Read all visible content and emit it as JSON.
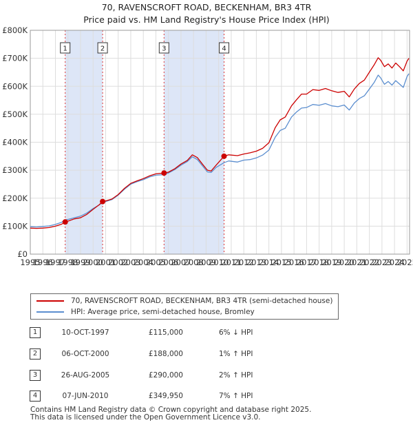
{
  "chart_data": {
    "type": "line",
    "title": "70, RAVENSCROFT ROAD, BECKENHAM, BR3 4TR",
    "subtitle": "Price paid vs. HM Land Registry's House Price Index (HPI)",
    "xlabel": "",
    "ylabel": "",
    "xlim": [
      1995,
      2025.2
    ],
    "ylim": [
      0,
      800000
    ],
    "x_ticks": [
      "1995",
      "1996",
      "1997",
      "1998",
      "1999",
      "2000",
      "2001",
      "2002",
      "2003",
      "2004",
      "2005",
      "2006",
      "2007",
      "2008",
      "2009",
      "2010",
      "2011",
      "2012",
      "2013",
      "2014",
      "2015",
      "2016",
      "2017",
      "2018",
      "2019",
      "2020",
      "2021",
      "2022",
      "2023",
      "2024",
      "2025"
    ],
    "y_ticks": [
      {
        "value": 0,
        "label": "£0"
      },
      {
        "value": 100000,
        "label": "£100K"
      },
      {
        "value": 200000,
        "label": "£200K"
      },
      {
        "value": 300000,
        "label": "£300K"
      },
      {
        "value": 400000,
        "label": "£400K"
      },
      {
        "value": 500000,
        "label": "£500K"
      },
      {
        "value": 600000,
        "label": "£600K"
      },
      {
        "value": 700000,
        "label": "£700K"
      },
      {
        "value": 800000,
        "label": "£800K"
      }
    ],
    "shaded_ranges": [
      [
        1997.78,
        2000.76
      ],
      [
        2005.65,
        2010.43
      ]
    ],
    "series": [
      {
        "name": "70, RAVENSCROFT ROAD, BECKENHAM, BR3 4TR (semi-detached house)",
        "color": "#cc0000",
        "points": [
          [
            1995.0,
            93000
          ],
          [
            1995.5,
            92000
          ],
          [
            1996.0,
            93000
          ],
          [
            1996.5,
            95000
          ],
          [
            1997.0,
            100000
          ],
          [
            1997.5,
            107000
          ],
          [
            1997.78,
            115000
          ],
          [
            1998.0,
            118000
          ],
          [
            1998.5,
            126000
          ],
          [
            1999.0,
            130000
          ],
          [
            1999.5,
            142000
          ],
          [
            2000.0,
            160000
          ],
          [
            2000.5,
            177000
          ],
          [
            2000.76,
            188000
          ],
          [
            2001.0,
            190000
          ],
          [
            2001.5,
            197000
          ],
          [
            2002.0,
            213000
          ],
          [
            2002.5,
            235000
          ],
          [
            2003.0,
            253000
          ],
          [
            2003.5,
            262000
          ],
          [
            2004.0,
            270000
          ],
          [
            2004.5,
            280000
          ],
          [
            2005.0,
            287000
          ],
          [
            2005.65,
            290000
          ],
          [
            2006.0,
            293000
          ],
          [
            2006.5,
            305000
          ],
          [
            2007.0,
            322000
          ],
          [
            2007.5,
            335000
          ],
          [
            2007.9,
            355000
          ],
          [
            2008.3,
            345000
          ],
          [
            2008.7,
            322000
          ],
          [
            2009.1,
            300000
          ],
          [
            2009.4,
            297000
          ],
          [
            2009.8,
            318000
          ],
          [
            2010.43,
            349950
          ],
          [
            2010.8,
            355000
          ],
          [
            2011.5,
            352000
          ],
          [
            2012.0,
            358000
          ],
          [
            2012.5,
            362000
          ],
          [
            2013.0,
            368000
          ],
          [
            2013.5,
            378000
          ],
          [
            2014.0,
            398000
          ],
          [
            2014.5,
            452000
          ],
          [
            2014.9,
            480000
          ],
          [
            2015.3,
            490000
          ],
          [
            2015.8,
            530000
          ],
          [
            2016.2,
            552000
          ],
          [
            2016.6,
            572000
          ],
          [
            2017.0,
            572000
          ],
          [
            2017.5,
            588000
          ],
          [
            2018.0,
            585000
          ],
          [
            2018.5,
            592000
          ],
          [
            2019.0,
            584000
          ],
          [
            2019.5,
            578000
          ],
          [
            2020.0,
            582000
          ],
          [
            2020.4,
            562000
          ],
          [
            2020.8,
            590000
          ],
          [
            2021.2,
            610000
          ],
          [
            2021.6,
            622000
          ],
          [
            2022.0,
            650000
          ],
          [
            2022.4,
            678000
          ],
          [
            2022.7,
            702000
          ],
          [
            2022.9,
            693000
          ],
          [
            2023.2,
            670000
          ],
          [
            2023.5,
            680000
          ],
          [
            2023.8,
            665000
          ],
          [
            2024.1,
            683000
          ],
          [
            2024.4,
            670000
          ],
          [
            2024.7,
            655000
          ],
          [
            2025.0,
            690000
          ],
          [
            2025.15,
            700000
          ]
        ]
      },
      {
        "name": "HPI: Average price, semi-detached house, Bromley",
        "color": "#5b8ecf",
        "points": [
          [
            1995.0,
            98000
          ],
          [
            1995.5,
            97000
          ],
          [
            1996.0,
            99000
          ],
          [
            1996.5,
            101000
          ],
          [
            1997.0,
            106000
          ],
          [
            1997.5,
            114000
          ],
          [
            1997.78,
            122000
          ],
          [
            1998.0,
            124000
          ],
          [
            1998.5,
            130000
          ],
          [
            1999.0,
            136000
          ],
          [
            1999.5,
            147000
          ],
          [
            2000.0,
            163000
          ],
          [
            2000.5,
            176000
          ],
          [
            2000.76,
            186000
          ],
          [
            2001.0,
            188000
          ],
          [
            2001.5,
            195000
          ],
          [
            2002.0,
            211000
          ],
          [
            2002.5,
            232000
          ],
          [
            2003.0,
            250000
          ],
          [
            2003.5,
            259000
          ],
          [
            2004.0,
            266000
          ],
          [
            2004.5,
            276000
          ],
          [
            2005.0,
            282000
          ],
          [
            2005.65,
            284000
          ],
          [
            2006.0,
            290000
          ],
          [
            2006.5,
            302000
          ],
          [
            2007.0,
            318000
          ],
          [
            2007.5,
            331000
          ],
          [
            2007.9,
            348000
          ],
          [
            2008.3,
            338000
          ],
          [
            2008.7,
            316000
          ],
          [
            2009.1,
            294000
          ],
          [
            2009.4,
            292000
          ],
          [
            2009.8,
            310000
          ],
          [
            2010.43,
            327000
          ],
          [
            2010.8,
            333000
          ],
          [
            2011.5,
            329000
          ],
          [
            2012.0,
            336000
          ],
          [
            2012.5,
            338000
          ],
          [
            2013.0,
            344000
          ],
          [
            2013.5,
            354000
          ],
          [
            2014.0,
            372000
          ],
          [
            2014.5,
            418000
          ],
          [
            2014.9,
            442000
          ],
          [
            2015.3,
            450000
          ],
          [
            2015.8,
            490000
          ],
          [
            2016.2,
            508000
          ],
          [
            2016.6,
            522000
          ],
          [
            2017.0,
            524000
          ],
          [
            2017.5,
            535000
          ],
          [
            2018.0,
            532000
          ],
          [
            2018.5,
            538000
          ],
          [
            2019.0,
            530000
          ],
          [
            2019.5,
            527000
          ],
          [
            2020.0,
            533000
          ],
          [
            2020.4,
            515000
          ],
          [
            2020.8,
            540000
          ],
          [
            2021.2,
            556000
          ],
          [
            2021.6,
            566000
          ],
          [
            2022.0,
            590000
          ],
          [
            2022.4,
            615000
          ],
          [
            2022.7,
            640000
          ],
          [
            2022.9,
            630000
          ],
          [
            2023.2,
            607000
          ],
          [
            2023.5,
            617000
          ],
          [
            2023.8,
            604000
          ],
          [
            2024.1,
            620000
          ],
          [
            2024.4,
            608000
          ],
          [
            2024.7,
            596000
          ],
          [
            2025.0,
            635000
          ],
          [
            2025.15,
            645000
          ]
        ]
      }
    ],
    "sales": [
      {
        "num": "1",
        "x": 1997.78,
        "price": 115000,
        "date": "10-OCT-1997",
        "price_label": "£115,000",
        "hpi": "6% ↓ HPI"
      },
      {
        "num": "2",
        "x": 2000.76,
        "price": 188000,
        "date": "06-OCT-2000",
        "price_label": "£188,000",
        "hpi": "1% ↑ HPI"
      },
      {
        "num": "3",
        "x": 2005.65,
        "price": 290000,
        "date": "26-AUG-2005",
        "price_label": "£290,000",
        "hpi": "2% ↑ HPI"
      },
      {
        "num": "4",
        "x": 2010.43,
        "price": 349950,
        "date": "07-JUN-2010",
        "price_label": "£349,950",
        "hpi": "7% ↑ HPI"
      }
    ]
  },
  "footer": {
    "line1": "Contains HM Land Registry data © Crown copyright and database right 2025.",
    "line2": "This data is licensed under the Open Government Licence v3.0."
  }
}
